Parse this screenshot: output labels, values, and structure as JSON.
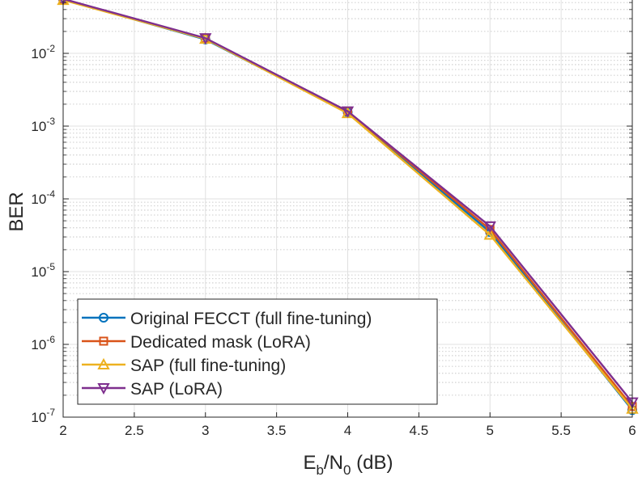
{
  "chart_data": {
    "type": "line",
    "title": "",
    "xlabel": {
      "main": "E",
      "sub1": "b",
      "mid": "/N",
      "sub2": "0",
      "tail": " (dB)"
    },
    "ylabel": "BER",
    "xlim": [
      2,
      6
    ],
    "ylim": [
      1e-07,
      0.06
    ],
    "yscale": "log",
    "grid": true,
    "minor_grid": true,
    "x_ticks": [
      {
        "value": 2,
        "label": "2"
      },
      {
        "value": 2.5,
        "label": "2.5"
      },
      {
        "value": 3,
        "label": "3"
      },
      {
        "value": 3.5,
        "label": "3.5"
      },
      {
        "value": 4,
        "label": "4"
      },
      {
        "value": 4.5,
        "label": "4.5"
      },
      {
        "value": 5,
        "label": "5"
      },
      {
        "value": 5.5,
        "label": "5.5"
      },
      {
        "value": 6,
        "label": "6"
      }
    ],
    "y_ticks": [
      {
        "value": 1e-07,
        "base": "10",
        "exp": "-7"
      },
      {
        "value": 1e-06,
        "base": "10",
        "exp": "-6"
      },
      {
        "value": 1e-05,
        "base": "10",
        "exp": "-5"
      },
      {
        "value": 0.0001,
        "base": "10",
        "exp": "-4"
      },
      {
        "value": 0.001,
        "base": "10",
        "exp": "-3"
      },
      {
        "value": 0.01,
        "base": "10",
        "exp": "-2"
      }
    ],
    "x": [
      2,
      3,
      4,
      5,
      6
    ],
    "legend_position": "bottom-left",
    "series": [
      {
        "name": "Original FECCT (full fine-tuning)",
        "color": "#0072BD",
        "marker": "circle",
        "values": [
          0.055,
          0.0155,
          0.00155,
          3.5e-05,
          1.25e-07
        ]
      },
      {
        "name": "Dedicated mask (LoRA)",
        "color": "#D95319",
        "marker": "square",
        "values": [
          0.055,
          0.016,
          0.0016,
          3.8e-05,
          1.4e-07
        ]
      },
      {
        "name": "SAP (full fine-tuning)",
        "color": "#EDB120",
        "marker": "triangle-up",
        "values": [
          0.054,
          0.0158,
          0.0015,
          3.2e-05,
          1.3e-07
        ]
      },
      {
        "name": "SAP (LoRA)",
        "color": "#7E2F8E",
        "marker": "triangle-down",
        "values": [
          0.056,
          0.0162,
          0.0016,
          4.2e-05,
          1.6e-07
        ]
      }
    ]
  }
}
